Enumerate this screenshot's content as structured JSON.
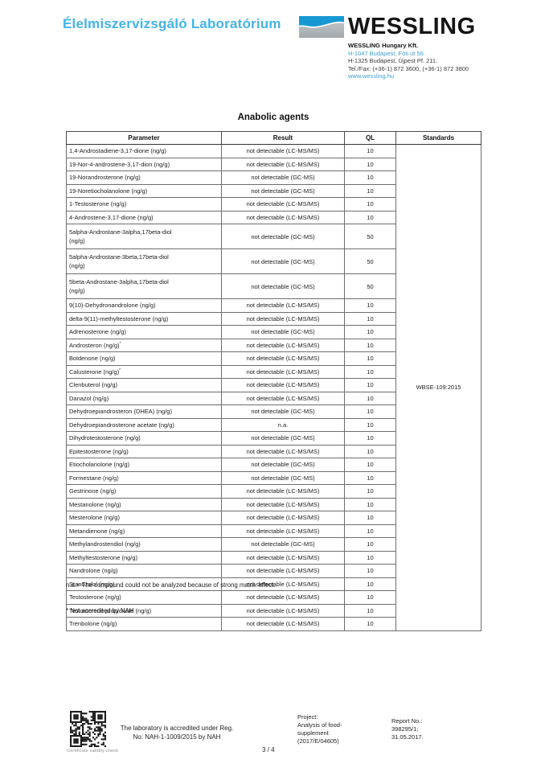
{
  "header": {
    "lab_title": "Élelmiszervizsgáló Laboratórium",
    "logo_text": "WESSLING",
    "company": "WESSLING Hungary Kft.",
    "address_line1": "H-1047 Budapest, Fóti út 56.",
    "address_line2": "H-1325 Budapest, Újpest Pf. 211.",
    "tel_fax": "Tel./Fax: (+36-1) 872 3600, (+36-1) 872 3800",
    "website": "www.wessling.hu"
  },
  "colors": {
    "accent_blue": "#45b3e4",
    "logo_blue": "#1798d3",
    "logo_gray": "#b4b9bd",
    "link_blue": "#3e9fd0"
  },
  "section_title": "Anabolic agents",
  "table": {
    "columns": [
      "Parameter",
      "Result",
      "QL",
      "Standards"
    ],
    "standards_value": "WBSE-109:2015",
    "rows": [
      {
        "parameter": "1,4-Androstadiene-3,17-dione (ng/g)",
        "result": "not detectable (LC-MS/MS)",
        "ql": "10"
      },
      {
        "parameter": "19-Nor-4-androstene-3,17-dion (ng/g)",
        "result": "not detectable (LC-MS/MS)",
        "ql": "10"
      },
      {
        "parameter": "19-Norandrosterone (ng/g)",
        "result": "not detectable (GC-MS)",
        "ql": "10"
      },
      {
        "parameter": "19-Noretiocholanolone (ng/g)",
        "result": "not detectable (GC-MS)",
        "ql": "10"
      },
      {
        "parameter": "1-Testosterone (ng/g)",
        "result": "not detectable (LC-MS/MS)",
        "ql": "10"
      },
      {
        "parameter": "4-Androstene-3,17-dione (ng/g)",
        "result": "not detectable (LC-MS/MS)",
        "ql": "10"
      },
      {
        "parameter": "5alpha-Androstane-3alpha,17beta-diol\n(ng/g)",
        "result": "not detectable (GC-MS)",
        "ql": "50"
      },
      {
        "parameter": "5alpha-Androstane-3beta,17beta-diol\n(ng/g)",
        "result": "not detectable (GC-MS)",
        "ql": "50"
      },
      {
        "parameter": "5beta-Androstane-3alpha,17beta-diol\n(ng/g)",
        "result": "not detectable (GC-MS)",
        "ql": "50"
      },
      {
        "parameter": "9(10)-Dehydronandrolone (ng/g)",
        "result": "not detectable (LC-MS/MS)",
        "ql": "10"
      },
      {
        "parameter": "delta-9(11)-methyltestosterone (ng/g)",
        "result": "not detectable (LC-MS/MS)",
        "ql": "10"
      },
      {
        "parameter": "Adrenosterone (ng/g)",
        "result": "not detectable (GC-MS)",
        "ql": "10"
      },
      {
        "parameter": "Androsteron (ng/g)",
        "note_mark": "*",
        "result": "not detectable (LC-MS/MS)",
        "ql": "10"
      },
      {
        "parameter": "Boldenone (ng/g)",
        "result": "not detectable (LC-MS/MS)",
        "ql": "10"
      },
      {
        "parameter": "Calusterone (ng/g)",
        "note_mark": "*",
        "result": "not detectable (LC-MS/MS)",
        "ql": "10"
      },
      {
        "parameter": "Clenbuterol (ng/g)",
        "result": "not detectable (LC-MS/MS)",
        "ql": "10"
      },
      {
        "parameter": "Danazol (ng/g)",
        "result": "not detectable (LC-MS/MS)",
        "ql": "10"
      },
      {
        "parameter": "Dehydroepiandrosteron (DHEA) (ng/g)",
        "result": "not detectable (GC-MS)",
        "ql": "10"
      },
      {
        "parameter": "Dehydroepiandrosterone acetate (ng/g)",
        "result": "n.a.",
        "ql": "10"
      },
      {
        "parameter": "Dihydrotestosterone (ng/g)",
        "result": "not detectable (GC-MS)",
        "ql": "10"
      },
      {
        "parameter": "Epitestosterone (ng/g)",
        "result": "not detectable (LC-MS/MS)",
        "ql": "10"
      },
      {
        "parameter": "Etiocholanolone (ng/g)",
        "result": "not detectable (GC-MS)",
        "ql": "10"
      },
      {
        "parameter": "Formestane (ng/g)",
        "result": "not detectable (GC-MS)",
        "ql": "10"
      },
      {
        "parameter": "Gestrinone (ng/g)",
        "result": "not detectable (LC-MS/MS)",
        "ql": "10"
      },
      {
        "parameter": "Mestanolone (ng/g)",
        "result": "not detectable (LC-MS/MS)",
        "ql": "10"
      },
      {
        "parameter": "Mesterolone (ng/g)",
        "result": "not detectable (LC-MS/MS)",
        "ql": "10"
      },
      {
        "parameter": "Metandienone (ng/g)",
        "result": "not detectable (LC-MS/MS)",
        "ql": "10"
      },
      {
        "parameter": "Methylandrostendiol (ng/g)",
        "result": "not detectable (GC-MS)",
        "ql": "10"
      },
      {
        "parameter": "Methyltestosterone (ng/g)",
        "result": "not detectable (LC-MS/MS)",
        "ql": "10"
      },
      {
        "parameter": "Nandrolone (ng/g)",
        "result": "not detectable (LC-MS/MS)",
        "ql": "10"
      },
      {
        "parameter": "Stanozolol (ng/g)",
        "result": "not detectable (LC-MS/MS)",
        "ql": "10"
      },
      {
        "parameter": "Testosterone (ng/g)",
        "result": "not detectable (LC-MS/MS)",
        "ql": "10"
      },
      {
        "parameter": "Testosterone propionate (ng/g)",
        "result": "not detectable (LC-MS/MS)",
        "ql": "10"
      },
      {
        "parameter": "Trenbolone (ng/g)",
        "result": "not detectable (LC-MS/MS)",
        "ql": "10"
      }
    ]
  },
  "notes": {
    "na_note": "n.a.= The compound could not be analyzed because of strong matrix effect.",
    "accreditation_note": "* Not accredited by NAH"
  },
  "footer": {
    "qr_caption": "Certificate validity check",
    "accreditation_line1": "The laboratory is accredited under Reg.",
    "accreditation_line2": "No: NAH-1-1009/2015 by NAH",
    "page_number": "3 / 4",
    "project_label": "Project:",
    "project_line1": "Analysis of food-",
    "project_line2": "supplement",
    "project_line3": "(2017/E/04605)",
    "report_label": "Report No.:",
    "report_number": "398295/1;",
    "report_date": "31.05.2017."
  }
}
